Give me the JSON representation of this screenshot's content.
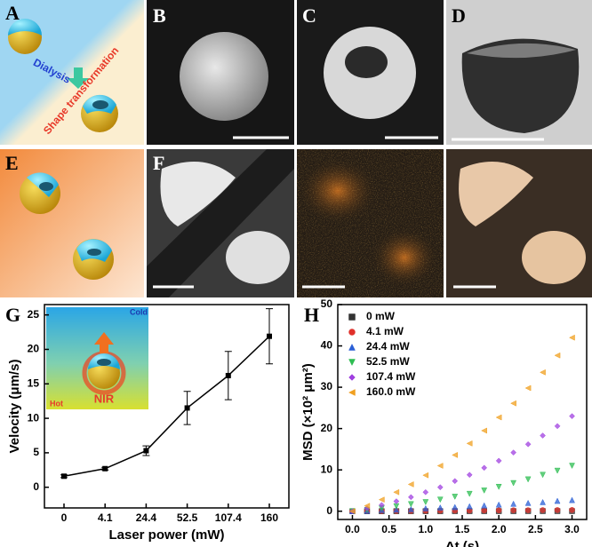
{
  "panels": {
    "labels": [
      "A",
      "B",
      "C",
      "D",
      "E",
      "F",
      "G",
      "H"
    ],
    "a": {
      "arrow_top": "Dialysis",
      "arrow_bottom": "Shape transformation"
    },
    "g_inset": {
      "cold": "Cold",
      "laser": "NIR",
      "hot": "Hot"
    }
  },
  "chart_data": [
    {
      "type": "line",
      "xlabel": "Laser power (mW)",
      "ylabel": "Velocity (μm/s)",
      "categories": [
        "0",
        "4.1",
        "24.4",
        "52.5",
        "107.4",
        "160"
      ],
      "values": [
        1.6,
        2.7,
        5.3,
        11.5,
        16.2,
        21.9
      ],
      "errors": [
        0.2,
        0.2,
        0.7,
        2.4,
        3.5,
        4.0
      ],
      "color": "#000000",
      "ylim": [
        -3,
        26.5
      ],
      "yticks": [
        0,
        5,
        10,
        15,
        20,
        25
      ]
    },
    {
      "type": "scatter",
      "xlabel": "Δt (s)",
      "ylabel": "MSD (×10² μm²)",
      "x": [
        0,
        0.2,
        0.4,
        0.6,
        0.8,
        1.0,
        1.2,
        1.4,
        1.6,
        1.8,
        2.0,
        2.2,
        2.4,
        2.6,
        2.8,
        3.0
      ],
      "series": [
        {
          "name": "0 mW",
          "color": "#333333",
          "marker": "square",
          "values": [
            0,
            0,
            0,
            0.01,
            0.01,
            0.01,
            0.01,
            0.02,
            0.02,
            0.02,
            0.02,
            0.02,
            0.03,
            0.03,
            0.03,
            0.03
          ]
        },
        {
          "name": "4.1 mW",
          "color": "#e0302a",
          "marker": "circle",
          "values": [
            0,
            0.02,
            0.04,
            0.06,
            0.08,
            0.1,
            0.12,
            0.14,
            0.16,
            0.18,
            0.2,
            0.22,
            0.24,
            0.26,
            0.28,
            0.3
          ]
        },
        {
          "name": "24.4 mW",
          "color": "#2a5fd6",
          "marker": "triangle-up",
          "values": [
            0,
            0.1,
            0.3,
            0.4,
            0.5,
            0.7,
            0.9,
            1.0,
            1.2,
            1.4,
            1.6,
            1.8,
            2.0,
            2.2,
            2.5,
            2.7
          ]
        },
        {
          "name": "52.5 mW",
          "color": "#2dbd52",
          "marker": "triangle-down",
          "values": [
            0,
            0.3,
            0.7,
            1.2,
            1.7,
            2.2,
            2.8,
            3.5,
            4.2,
            5.0,
            5.9,
            6.8,
            7.7,
            8.8,
            9.8,
            11.0
          ]
        },
        {
          "name": "107.4 mW",
          "color": "#a040e0",
          "marker": "diamond",
          "values": [
            0,
            0.7,
            1.5,
            2.4,
            3.4,
            4.6,
            5.8,
            7.3,
            8.8,
            10.5,
            12.2,
            14.2,
            16.2,
            18.3,
            20.6,
            23.0
          ]
        },
        {
          "name": "160.0 mW",
          "color": "#f0a020",
          "marker": "triangle-left",
          "values": [
            0,
            1.3,
            2.8,
            4.6,
            6.5,
            8.7,
            11.0,
            13.6,
            16.4,
            19.5,
            22.7,
            26.1,
            29.8,
            33.6,
            37.7,
            42.0
          ]
        }
      ],
      "xlim": [
        -0.2,
        3.2
      ],
      "xticks": [
        {
          "value": 0,
          "label": "0.0"
        },
        0.5,
        {
          "value": 1,
          "label": "1.0"
        },
        1.5,
        {
          "value": 2,
          "label": "2.0"
        },
        2.5,
        {
          "value": 3,
          "label": "3.0"
        }
      ],
      "ylim": [
        -2,
        50
      ],
      "yticks": [
        0,
        10,
        20,
        30,
        40,
        50
      ],
      "legend": "upper left"
    }
  ]
}
